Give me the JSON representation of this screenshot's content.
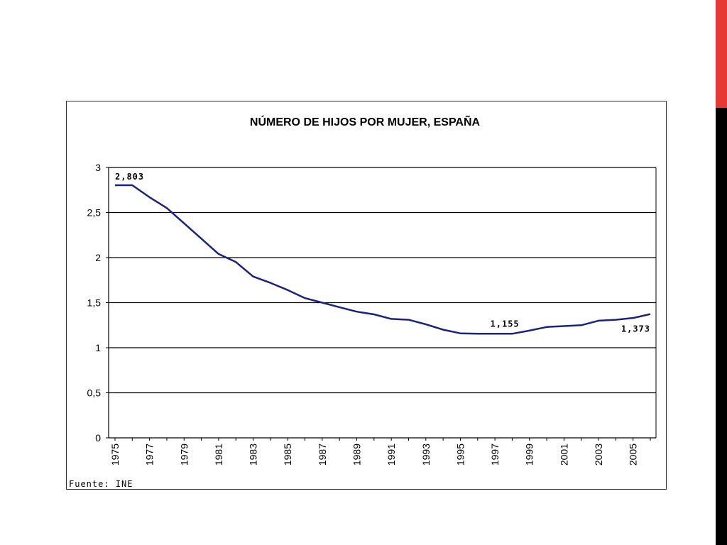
{
  "colors": {
    "accent_red": "#e53935",
    "accent_black": "#000000",
    "line": "#1a237e",
    "grid": "#000000"
  },
  "chart_data": {
    "type": "line",
    "title": "NÚMERO DE HIJOS POR MUJER, ESPAÑA",
    "xlabel": "",
    "ylabel": "",
    "ylim": [
      0,
      3
    ],
    "yticks": [
      "0",
      "0,5",
      "1",
      "1,5",
      "2",
      "2,5",
      "3"
    ],
    "xticks": [
      "1975",
      "1977",
      "1979",
      "1981",
      "1983",
      "1985",
      "1987",
      "1989",
      "1991",
      "1993",
      "1995",
      "1997",
      "1999",
      "2001",
      "2003",
      "2005"
    ],
    "grid": true,
    "legend": "none",
    "x": [
      1975,
      1976,
      1977,
      1978,
      1979,
      1980,
      1981,
      1982,
      1983,
      1984,
      1985,
      1986,
      1987,
      1988,
      1989,
      1990,
      1991,
      1992,
      1993,
      1994,
      1995,
      1996,
      1997,
      1998,
      1999,
      2000,
      2001,
      2002,
      2003,
      2004,
      2005,
      2006
    ],
    "series": [
      {
        "values": [
          2.803,
          2.803,
          2.67,
          2.55,
          2.38,
          2.21,
          2.04,
          1.95,
          1.79,
          1.72,
          1.64,
          1.55,
          1.5,
          1.45,
          1.4,
          1.37,
          1.32,
          1.31,
          1.26,
          1.2,
          1.16,
          1.155,
          1.155,
          1.155,
          1.19,
          1.23,
          1.24,
          1.25,
          1.3,
          1.31,
          1.33,
          1.373
        ]
      }
    ],
    "annotations": [
      {
        "x": 1975,
        "text": "2,803"
      },
      {
        "x": 1997,
        "text": "1,155"
      },
      {
        "x": 2006,
        "text": "1,373"
      }
    ],
    "source": "Fuente: INE"
  }
}
